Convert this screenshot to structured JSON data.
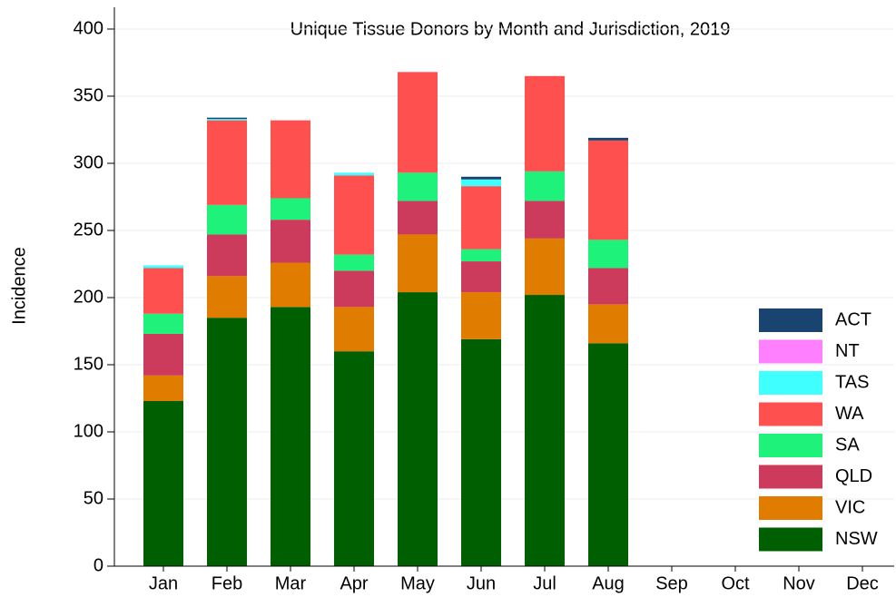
{
  "chart_data": {
    "type": "stacked_bar",
    "title": "Unique Tissue Donors by Month and Jurisdiction, 2019",
    "y_label": "Incidence",
    "categories": [
      "Jan",
      "Feb",
      "Mar",
      "Apr",
      "May",
      "Jun",
      "Jul",
      "Aug",
      "Sep",
      "Oct",
      "Nov",
      "Dec"
    ],
    "series": [
      {
        "name": "NSW",
        "color": "#005f00",
        "values": [
          123,
          185,
          193,
          160,
          204,
          169,
          202,
          166,
          0,
          0,
          0,
          0
        ]
      },
      {
        "name": "VIC",
        "color": "#e07c00",
        "values": [
          19,
          31,
          33,
          33,
          43,
          35,
          42,
          29,
          0,
          0,
          0,
          0
        ]
      },
      {
        "name": "QLD",
        "color": "#cc3a5c",
        "values": [
          31,
          31,
          32,
          27,
          25,
          23,
          28,
          27,
          0,
          0,
          0,
          0
        ]
      },
      {
        "name": "SA",
        "color": "#1ef27a",
        "values": [
          15,
          22,
          16,
          12,
          21,
          9,
          22,
          21,
          0,
          0,
          0,
          0
        ]
      },
      {
        "name": "WA",
        "color": "#ff5050",
        "values": [
          34,
          63,
          58,
          59,
          75,
          47,
          71,
          74,
          0,
          0,
          0,
          0
        ]
      },
      {
        "name": "TAS",
        "color": "#40ffff",
        "values": [
          2,
          1,
          0,
          2,
          0,
          5,
          0,
          0,
          0,
          0,
          0,
          0
        ]
      },
      {
        "name": "NT",
        "color": "#ff80ff",
        "values": [
          0,
          0,
          0,
          0,
          0,
          0,
          0,
          0,
          0,
          0,
          0,
          0
        ]
      },
      {
        "name": "ACT",
        "color": "#1a4470",
        "values": [
          0,
          1,
          0,
          0,
          0,
          2,
          0,
          2,
          0,
          0,
          0,
          0
        ]
      }
    ],
    "ylim": [
      0,
      400
    ],
    "yticks": [
      0,
      50,
      100,
      150,
      200,
      250,
      300,
      350,
      400
    ],
    "grid": true,
    "legend": "lower right"
  }
}
